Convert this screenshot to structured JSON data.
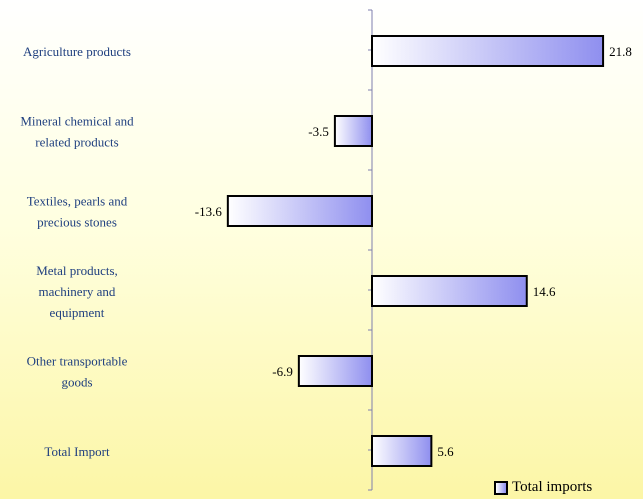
{
  "chart_data": {
    "type": "bar",
    "orientation": "horizontal",
    "categories": [
      [
        "Agriculture products"
      ],
      [
        "Mineral chemical and",
        "related products"
      ],
      [
        "Textiles, pearls and",
        "precious stones"
      ],
      [
        "Metal products,",
        "machinery and",
        "equipment"
      ],
      [
        "Other transportable",
        "goods"
      ],
      [
        "Total Import"
      ]
    ],
    "series": [
      {
        "name": "Total imports",
        "values": [
          21.8,
          -3.5,
          -13.6,
          14.6,
          -6.9,
          5.6
        ],
        "labels": [
          "21.8",
          "-3.5",
          "-13.6",
          "14.6",
          "-6.9",
          "5.6"
        ]
      }
    ],
    "title": "",
    "xlabel": "",
    "ylabel": "",
    "xlim": [
      -19,
      25
    ],
    "grid": false,
    "legend_position": "bottom-right",
    "colors": {
      "bar_start": "#ffffff",
      "bar_end": "#8f8fef",
      "bar_border": "#000000",
      "category_text": "#1f3f7f",
      "axis": "#7f7fae"
    }
  }
}
